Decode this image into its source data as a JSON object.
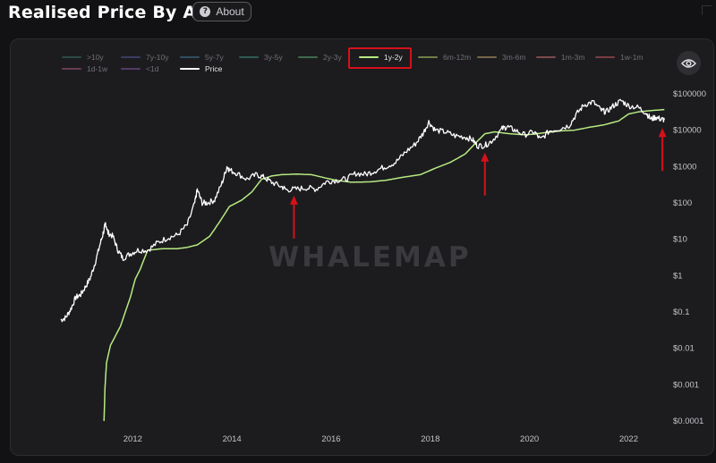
{
  "header": {
    "title": "Realised Price By Age",
    "about_label": "About",
    "help_glyph": "?"
  },
  "legend": [
    {
      "label": ">10y",
      "color": "#2c4a45",
      "state": "inactive"
    },
    {
      "label": "7y-10y",
      "color": "#3a3c62",
      "state": "inactive"
    },
    {
      "label": "5y-7y",
      "color": "#2f4e5e",
      "state": "inactive"
    },
    {
      "label": "3y-5y",
      "color": "#2f5a55",
      "state": "inactive"
    },
    {
      "label": "2y-3y",
      "color": "#3f6a4b",
      "state": "inactive"
    },
    {
      "label": "1y-2y",
      "color": "#b7ea80",
      "state": "highlighted"
    },
    {
      "label": "6m-12m",
      "color": "#6e7f45",
      "state": "inactive"
    },
    {
      "label": "3m-6m",
      "color": "#76664a",
      "state": "inactive"
    },
    {
      "label": "1m-3m",
      "color": "#7a4a4e",
      "state": "inactive"
    },
    {
      "label": "1w-1m",
      "color": "#7a3b44",
      "state": "inactive"
    },
    {
      "label": "1d-1w",
      "color": "#6a3b52",
      "state": "inactive"
    },
    {
      "label": "<1d",
      "color": "#543a66",
      "state": "inactive"
    },
    {
      "label": "Price",
      "color": "#ffffff",
      "state": "active"
    }
  ],
  "watermark": "WHALEMAP",
  "icons": {
    "help": "question-circle-icon",
    "visibility": "eye-icon"
  },
  "colors": {
    "background": "#121214",
    "panel": "#1c1c1f",
    "price": "#ffffff",
    "realised_1y_2y": "#b7ea80",
    "annotation": "#d6111a"
  },
  "chart_data": {
    "type": "line",
    "y_scale": "log",
    "ylim": [
      0.0001,
      200000
    ],
    "y_ticks": [
      {
        "value": 100000,
        "label": "$100000"
      },
      {
        "value": 10000,
        "label": "$10000"
      },
      {
        "value": 1000,
        "label": "$1000"
      },
      {
        "value": 100,
        "label": "$100"
      },
      {
        "value": 10,
        "label": "$10"
      },
      {
        "value": 1,
        "label": "$1"
      },
      {
        "value": 0.1,
        "label": "$0.1"
      },
      {
        "value": 0.01,
        "label": "$0.01"
      },
      {
        "value": 0.001,
        "label": "$0.001"
      },
      {
        "value": 0.0001,
        "label": "$0.0001"
      }
    ],
    "xlim": [
      2010.55,
      2022.75
    ],
    "x_ticks": [
      {
        "value": 2012,
        "label": "2012"
      },
      {
        "value": 2014,
        "label": "2014"
      },
      {
        "value": 2016,
        "label": "2016"
      },
      {
        "value": 2018,
        "label": "2018"
      },
      {
        "value": 2020,
        "label": "2020"
      },
      {
        "value": 2022,
        "label": "2022"
      }
    ],
    "series": [
      {
        "name": "Price",
        "points": [
          [
            2010.55,
            0.06
          ],
          [
            2010.65,
            0.07
          ],
          [
            2010.75,
            0.12
          ],
          [
            2010.85,
            0.25
          ],
          [
            2010.95,
            0.3
          ],
          [
            2011.05,
            0.5
          ],
          [
            2011.15,
            0.9
          ],
          [
            2011.25,
            2.5
          ],
          [
            2011.35,
            8
          ],
          [
            2011.42,
            18
          ],
          [
            2011.45,
            28
          ],
          [
            2011.5,
            15
          ],
          [
            2011.6,
            12
          ],
          [
            2011.7,
            5
          ],
          [
            2011.8,
            3
          ],
          [
            2011.95,
            4
          ],
          [
            2012.1,
            5
          ],
          [
            2012.3,
            5
          ],
          [
            2012.5,
            8
          ],
          [
            2012.7,
            11
          ],
          [
            2012.9,
            13
          ],
          [
            2013.1,
            25
          ],
          [
            2013.25,
            100
          ],
          [
            2013.3,
            230
          ],
          [
            2013.4,
            100
          ],
          [
            2013.5,
            100
          ],
          [
            2013.65,
            120
          ],
          [
            2013.8,
            350
          ],
          [
            2013.9,
            1000
          ],
          [
            2013.95,
            800
          ],
          [
            2014.1,
            650
          ],
          [
            2014.3,
            450
          ],
          [
            2014.5,
            600
          ],
          [
            2014.65,
            500
          ],
          [
            2014.8,
            370
          ],
          [
            2015.0,
            280
          ],
          [
            2015.1,
            230
          ],
          [
            2015.3,
            240
          ],
          [
            2015.5,
            260
          ],
          [
            2015.7,
            240
          ],
          [
            2015.9,
            380
          ],
          [
            2016.1,
            420
          ],
          [
            2016.3,
            450
          ],
          [
            2016.5,
            650
          ],
          [
            2016.7,
            610
          ],
          [
            2016.9,
            780
          ],
          [
            2017.1,
            1000
          ],
          [
            2017.3,
            1300
          ],
          [
            2017.5,
            2500
          ],
          [
            2017.7,
            4200
          ],
          [
            2017.85,
            8000
          ],
          [
            2017.97,
            17000
          ],
          [
            2018.1,
            10000
          ],
          [
            2018.3,
            9000
          ],
          [
            2018.5,
            7000
          ],
          [
            2018.7,
            6500
          ],
          [
            2018.85,
            5500
          ],
          [
            2018.95,
            3700
          ],
          [
            2019.1,
            3800
          ],
          [
            2019.25,
            5200
          ],
          [
            2019.45,
            11000
          ],
          [
            2019.55,
            12500
          ],
          [
            2019.7,
            10000
          ],
          [
            2019.9,
            7500
          ],
          [
            2020.1,
            9000
          ],
          [
            2020.22,
            5500
          ],
          [
            2020.4,
            9500
          ],
          [
            2020.6,
            11000
          ],
          [
            2020.8,
            13500
          ],
          [
            2020.95,
            28000
          ],
          [
            2021.1,
            50000
          ],
          [
            2021.28,
            60000
          ],
          [
            2021.45,
            35000
          ],
          [
            2021.55,
            32000
          ],
          [
            2021.7,
            48000
          ],
          [
            2021.85,
            65000
          ],
          [
            2022.0,
            47000
          ],
          [
            2022.2,
            42000
          ],
          [
            2022.35,
            30000
          ],
          [
            2022.45,
            20000
          ],
          [
            2022.55,
            23000
          ],
          [
            2022.65,
            20000
          ],
          [
            2022.72,
            19500
          ]
        ]
      },
      {
        "name": "1y-2y",
        "points": [
          [
            2011.42,
            0.0001
          ],
          [
            2011.44,
            0.0008
          ],
          [
            2011.47,
            0.004
          ],
          [
            2011.55,
            0.012
          ],
          [
            2011.75,
            0.04
          ],
          [
            2011.95,
            0.25
          ],
          [
            2012.05,
            0.8
          ],
          [
            2012.15,
            1.5
          ],
          [
            2012.3,
            5
          ],
          [
            2012.6,
            5.5
          ],
          [
            2012.9,
            5.5
          ],
          [
            2013.1,
            6
          ],
          [
            2013.3,
            7
          ],
          [
            2013.55,
            12
          ],
          [
            2013.75,
            30
          ],
          [
            2013.95,
            80
          ],
          [
            2014.2,
            120
          ],
          [
            2014.4,
            200
          ],
          [
            2014.6,
            450
          ],
          [
            2014.8,
            550
          ],
          [
            2015.0,
            600
          ],
          [
            2015.3,
            620
          ],
          [
            2015.6,
            600
          ],
          [
            2015.9,
            480
          ],
          [
            2016.1,
            420
          ],
          [
            2016.4,
            370
          ],
          [
            2016.8,
            380
          ],
          [
            2017.1,
            420
          ],
          [
            2017.5,
            520
          ],
          [
            2017.8,
            600
          ],
          [
            2018.1,
            900
          ],
          [
            2018.4,
            1300
          ],
          [
            2018.7,
            2200
          ],
          [
            2018.95,
            5000
          ],
          [
            2019.1,
            8000
          ],
          [
            2019.3,
            9000
          ],
          [
            2019.6,
            8000
          ],
          [
            2019.9,
            7500
          ],
          [
            2020.1,
            7800
          ],
          [
            2020.3,
            8500
          ],
          [
            2020.6,
            9500
          ],
          [
            2020.9,
            10000
          ],
          [
            2021.2,
            12000
          ],
          [
            2021.5,
            14000
          ],
          [
            2021.8,
            18000
          ],
          [
            2022.0,
            28000
          ],
          [
            2022.2,
            32000
          ],
          [
            2022.5,
            35000
          ],
          [
            2022.72,
            37000
          ]
        ]
      }
    ],
    "annotations": [
      {
        "type": "arrow-up",
        "x": 2015.25,
        "y": 250
      },
      {
        "type": "arrow-up",
        "x": 2019.1,
        "y": 3800
      },
      {
        "type": "arrow-up",
        "x": 2022.68,
        "y": 18000
      }
    ]
  }
}
